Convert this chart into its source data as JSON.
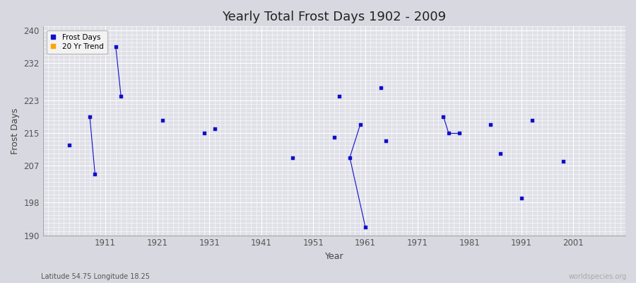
{
  "title": "Yearly Total Frost Days 1902 - 2009",
  "xlabel": "Year",
  "ylabel": "Frost Days",
  "xlim": [
    1899,
    2011
  ],
  "ylim": [
    190,
    241
  ],
  "yticks": [
    190,
    198,
    207,
    215,
    223,
    232,
    240
  ],
  "xticks": [
    1911,
    1921,
    1931,
    1941,
    1951,
    1961,
    1971,
    1981,
    1991,
    2001
  ],
  "fig_bg_color": "#d8d8e0",
  "plot_bg_color": "#e0e0e8",
  "grid_color": "#ffffff",
  "data_color": "#1010cc",
  "trend_color": "#ffa500",
  "subtitle": "Latitude 54.75 Longitude 18.25",
  "watermark": "worldspecies.org",
  "frost_days": [
    [
      1904,
      212
    ],
    [
      1908,
      219
    ],
    [
      1909,
      205
    ],
    [
      1913,
      236
    ],
    [
      1914,
      224
    ],
    [
      1922,
      218
    ],
    [
      1930,
      215
    ],
    [
      1932,
      216
    ],
    [
      1947,
      209
    ],
    [
      1955,
      214
    ],
    [
      1956,
      224
    ],
    [
      1958,
      209
    ],
    [
      1960,
      217
    ],
    [
      1961,
      192
    ],
    [
      1964,
      226
    ],
    [
      1965,
      213
    ],
    [
      1976,
      219
    ],
    [
      1977,
      215
    ],
    [
      1979,
      215
    ],
    [
      1985,
      217
    ],
    [
      1987,
      210
    ],
    [
      1991,
      199
    ],
    [
      1993,
      218
    ],
    [
      1999,
      208
    ]
  ],
  "segments": [
    [
      [
        1908,
        219
      ],
      [
        1909,
        205
      ]
    ],
    [
      [
        1913,
        236
      ],
      [
        1914,
        224
      ]
    ],
    [
      [
        1958,
        209
      ],
      [
        1960,
        217
      ]
    ],
    [
      [
        1958,
        209
      ],
      [
        1961,
        192
      ]
    ],
    [
      [
        1976,
        219
      ],
      [
        1977,
        215
      ]
    ],
    [
      [
        1977,
        215
      ],
      [
        1979,
        215
      ]
    ]
  ]
}
